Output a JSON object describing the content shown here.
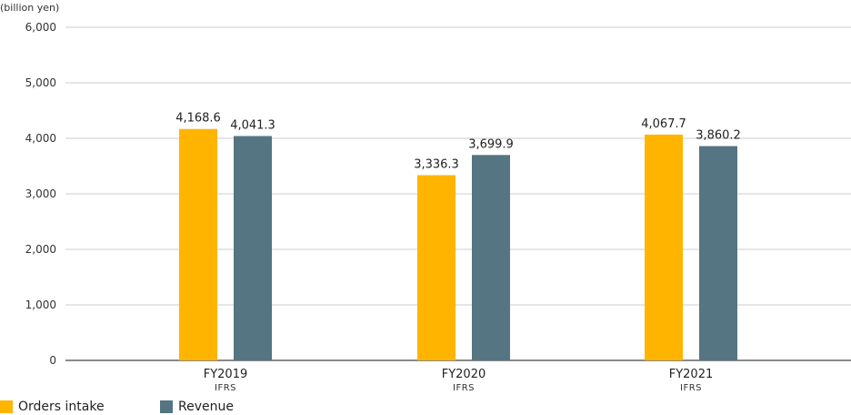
{
  "chart_data": {
    "type": "bar",
    "unit_label": "(billion yen)",
    "categories": [
      "FY2019",
      "FY2020",
      "FY2021"
    ],
    "category_sublabels": [
      "IFRS",
      "IFRS",
      "IFRS"
    ],
    "series": [
      {
        "name": "Orders intake",
        "values": [
          4168.6,
          3336.3,
          4067.7
        ],
        "labels": [
          "4,168.6",
          "3,336.3",
          "4,067.7"
        ],
        "color": "#FFB400"
      },
      {
        "name": "Revenue",
        "values": [
          4041.3,
          3699.9,
          3860.2
        ],
        "labels": [
          "4,041.3",
          "3,699.9",
          "3,860.2"
        ],
        "color": "#557582"
      }
    ],
    "ylim": [
      0,
      6000
    ],
    "yticks": [
      0,
      1000,
      2000,
      3000,
      4000,
      5000,
      6000
    ],
    "ytick_labels": [
      "0",
      "1,000",
      "2,000",
      "3,000",
      "4,000",
      "5,000",
      "6,000"
    ],
    "grid": true,
    "legend": "bottom-left"
  }
}
